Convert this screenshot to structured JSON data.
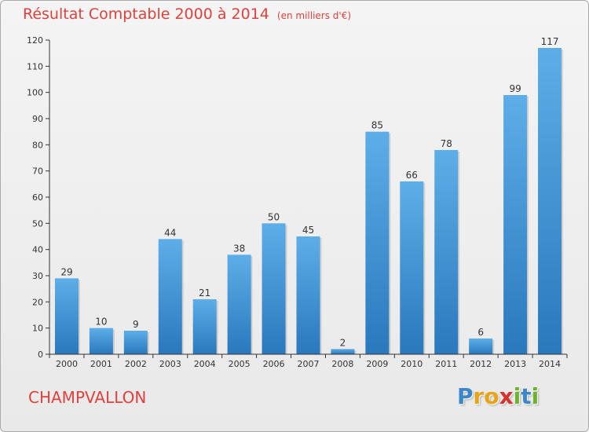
{
  "chart_data": {
    "type": "bar",
    "title": "Résultat Comptable 2000 à 2014",
    "subtitle": "(en milliers d'€)",
    "categories": [
      "2000",
      "2001",
      "2002",
      "2003",
      "2004",
      "2005",
      "2006",
      "2007",
      "2008",
      "2009",
      "2010",
      "2011",
      "2012",
      "2013",
      "2014"
    ],
    "values": [
      29,
      10,
      9,
      44,
      21,
      38,
      50,
      45,
      2,
      85,
      66,
      78,
      6,
      99,
      117
    ],
    "yticks": [
      0,
      10,
      20,
      30,
      40,
      50,
      60,
      70,
      80,
      90,
      100,
      110,
      120
    ],
    "ylim": [
      0,
      120
    ],
    "xlabel": "",
    "ylabel": "",
    "grid": false,
    "bar_color": "#3b8fd6"
  },
  "commune": "CHAMPVALLON",
  "logo": {
    "letters": [
      "P",
      "r",
      "o",
      "x",
      "i",
      "t",
      "i"
    ],
    "colors": [
      "#3a86c8",
      "#e8a317",
      "#e8a317",
      "#d6312e",
      "#6bb42d",
      "#3a86c8",
      "#6bb42d"
    ]
  },
  "colors": {
    "accent": "#e0413c",
    "axis": "#333333"
  }
}
